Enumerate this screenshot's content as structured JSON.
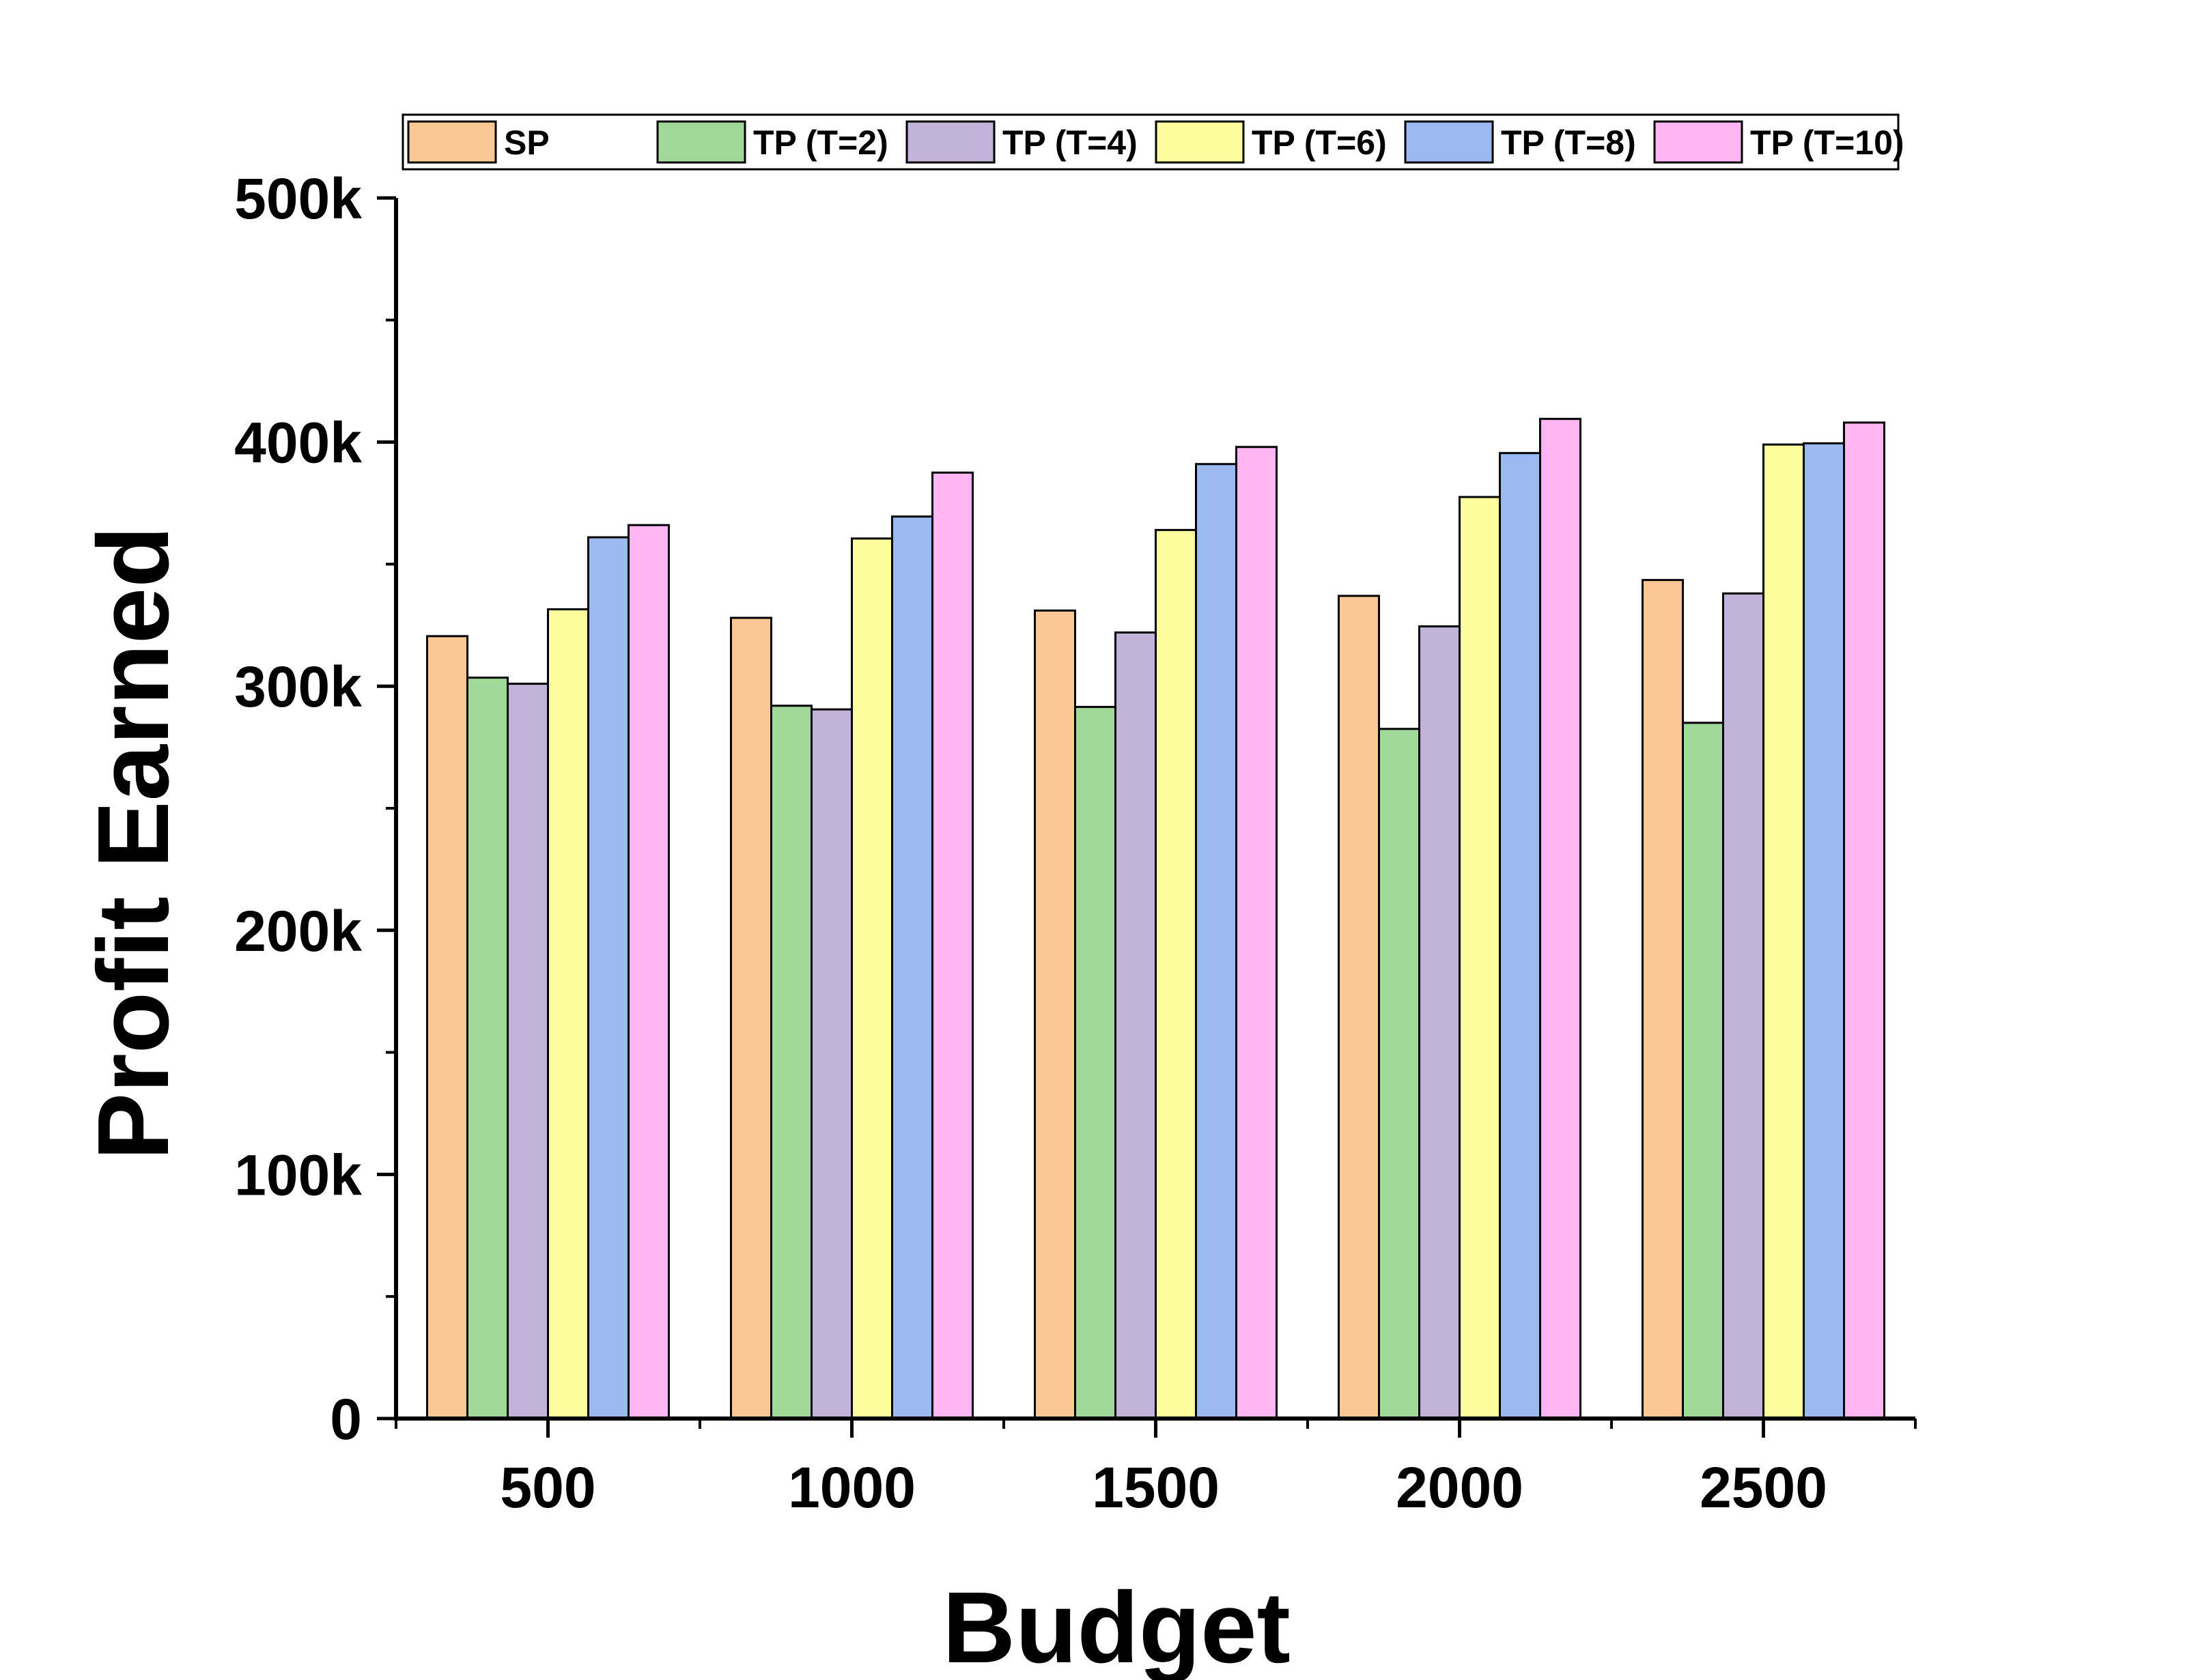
{
  "chart_data": {
    "type": "bar",
    "title": "",
    "xlabel": "Budget",
    "ylabel": "Profit Earned",
    "categories": [
      "500",
      "1000",
      "1500",
      "2000",
      "2500"
    ],
    "ylim": [
      0,
      500000
    ],
    "yticks": [
      0,
      100000,
      200000,
      300000,
      400000,
      500000
    ],
    "ytick_labels": [
      "0",
      "100k",
      "200k",
      "300k",
      "400k",
      "500k"
    ],
    "grid": false,
    "legend_position": "top",
    "series": [
      {
        "name": "SP",
        "color": "#FBC793",
        "values": [
          320500,
          328000,
          331000,
          337000,
          343500
        ]
      },
      {
        "name": "TP (T=2)",
        "color": "#A1D99B",
        "values": [
          303500,
          292000,
          291500,
          282500,
          285000
        ]
      },
      {
        "name": "TP (T=4)",
        "color": "#C2B3D9",
        "values": [
          301000,
          290500,
          322000,
          324500,
          338000
        ]
      },
      {
        "name": "TP (T=6)",
        "color": "#FDFD9E",
        "values": [
          331500,
          360500,
          364000,
          377500,
          399000
        ]
      },
      {
        "name": "TP (T=8)",
        "color": "#9DB9F2",
        "values": [
          361000,
          369500,
          391000,
          395500,
          399500
        ]
      },
      {
        "name": "TP (T=10)",
        "color": "#FDB6F2",
        "values": [
          366000,
          387500,
          398000,
          409500,
          408000
        ]
      }
    ]
  }
}
